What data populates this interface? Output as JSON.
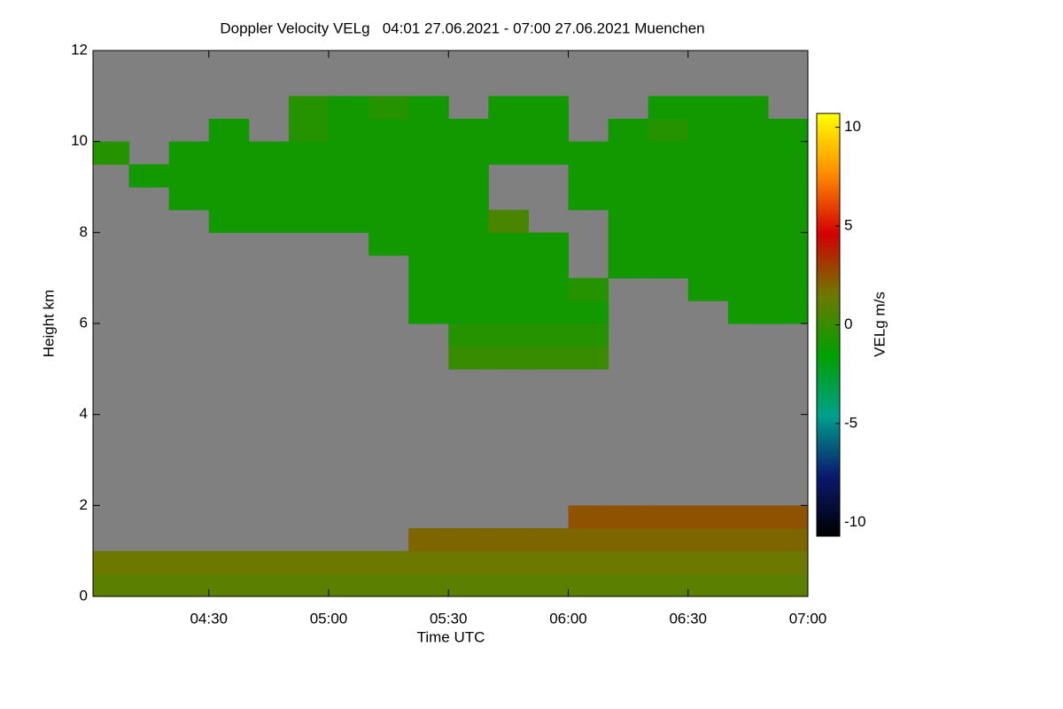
{
  "chart_data": {
    "type": "heatmap",
    "title": "Doppler Velocity VELg   04:01 27.06.2021 - 07:00 27.06.2021 Muenchen",
    "xlabel": "Time UTC",
    "ylabel": "Height km",
    "colorbar_label": "VELg m/s",
    "xlim": [
      "04:01",
      "07:00"
    ],
    "xticks": [
      "04:30",
      "05:00",
      "05:30",
      "06:00",
      "06:30",
      "07:00"
    ],
    "ylim": [
      0,
      12
    ],
    "yticks": [
      0,
      2,
      4,
      6,
      8,
      10,
      12
    ],
    "zlim": [
      -10.7,
      10.7
    ],
    "zticks": [
      -10,
      -5,
      0,
      5,
      10
    ],
    "colormap": [
      "#000000",
      "#0a1a6e",
      "#00a08c",
      "#00a000",
      "#6e7800",
      "#d20000",
      "#ff8c00",
      "#ffff00"
    ],
    "missing_color": "#808080",
    "x_bins": [
      "04:01",
      "04:10",
      "04:20",
      "04:30",
      "04:40",
      "04:50",
      "05:00",
      "05:10",
      "05:20",
      "05:30",
      "05:40",
      "05:50",
      "06:00",
      "06:10",
      "06:20",
      "06:30",
      "06:40",
      "06:50",
      "07:00"
    ],
    "y_bins": [
      0,
      0.5,
      1,
      1.5,
      2,
      2.5,
      3,
      3.5,
      4,
      4.5,
      5,
      5.5,
      6,
      6.5,
      7,
      7.5,
      8,
      8.5,
      9,
      9.5,
      10,
      10.5,
      11,
      11.5,
      12
    ],
    "z": [
      [
        1,
        1,
        1,
        1,
        1,
        1,
        1,
        1,
        1,
        1,
        1,
        1,
        1,
        1,
        1,
        1,
        1,
        1
      ],
      [
        1.5,
        1.5,
        1.5,
        1.5,
        1.5,
        1.5,
        1.5,
        1.5,
        1.5,
        1.5,
        1.5,
        1.5,
        1.5,
        1.5,
        1.5,
        1.5,
        1.5,
        1.5
      ],
      [
        null,
        null,
        null,
        null,
        null,
        null,
        null,
        null,
        2,
        2,
        2,
        2,
        2,
        2,
        2,
        2,
        2,
        2
      ],
      [
        null,
        null,
        null,
        null,
        null,
        null,
        null,
        null,
        null,
        null,
        null,
        null,
        2.5,
        2.5,
        2.5,
        2.5,
        2.5,
        2.5
      ],
      [
        null,
        null,
        null,
        null,
        null,
        null,
        null,
        null,
        null,
        null,
        null,
        null,
        null,
        null,
        null,
        null,
        null,
        null
      ],
      [
        null,
        null,
        null,
        null,
        null,
        null,
        null,
        null,
        null,
        null,
        null,
        null,
        null,
        null,
        null,
        null,
        null,
        null
      ],
      [
        null,
        null,
        null,
        null,
        null,
        null,
        null,
        null,
        null,
        null,
        null,
        null,
        null,
        null,
        null,
        null,
        null,
        null
      ],
      [
        null,
        null,
        null,
        null,
        null,
        null,
        null,
        null,
        null,
        null,
        null,
        null,
        null,
        null,
        null,
        null,
        null,
        null
      ],
      [
        null,
        null,
        null,
        null,
        null,
        null,
        null,
        null,
        null,
        null,
        null,
        null,
        null,
        null,
        null,
        null,
        null,
        null
      ],
      [
        null,
        null,
        null,
        null,
        null,
        null,
        null,
        null,
        null,
        null,
        null,
        null,
        null,
        null,
        null,
        null,
        null,
        null
      ],
      [
        null,
        null,
        null,
        null,
        null,
        null,
        null,
        null,
        null,
        0,
        0,
        0,
        0,
        null,
        null,
        null,
        null,
        null
      ],
      [
        null,
        null,
        null,
        null,
        null,
        null,
        null,
        null,
        null,
        -0.5,
        -0.5,
        -0.5,
        -0.5,
        null,
        null,
        null,
        null,
        null
      ],
      [
        null,
        null,
        null,
        null,
        null,
        null,
        null,
        null,
        -1,
        -1,
        -1,
        -1,
        -1,
        null,
        null,
        null,
        -1,
        -1
      ],
      [
        null,
        null,
        null,
        null,
        null,
        null,
        null,
        null,
        -1,
        -1,
        -1,
        -1,
        -0.5,
        null,
        null,
        -1,
        -1,
        -1
      ],
      [
        null,
        null,
        null,
        null,
        null,
        null,
        null,
        null,
        -1,
        -1,
        -1,
        -1,
        null,
        -1,
        -1,
        -1,
        -1,
        -1
      ],
      [
        null,
        null,
        null,
        null,
        null,
        null,
        null,
        -1,
        -1,
        -1,
        -1,
        -1,
        null,
        -1,
        -1,
        -1,
        -1,
        -1
      ],
      [
        null,
        null,
        null,
        -1,
        -1,
        -1,
        -1,
        -1,
        -1,
        -1,
        0.5,
        null,
        null,
        -1,
        -1,
        -1,
        -1,
        -1
      ],
      [
        null,
        null,
        -1,
        -1,
        -1,
        -1,
        -1,
        -1,
        -1,
        -1,
        null,
        null,
        -1,
        -1,
        -1,
        -1,
        -1,
        -1
      ],
      [
        null,
        -1,
        -1,
        -1,
        -1,
        -1,
        -1,
        -1,
        -1,
        -1,
        null,
        null,
        -1,
        -1,
        -1,
        -1,
        -1,
        -1
      ],
      [
        -0.5,
        null,
        -1,
        -1,
        -1,
        -1,
        -1,
        -1,
        -1,
        -1,
        -1,
        -1,
        -1,
        -1,
        -1,
        -1,
        -1,
        -1
      ],
      [
        null,
        null,
        null,
        -1,
        null,
        -0.5,
        -1,
        -1,
        -1,
        -1,
        -1,
        -1,
        null,
        -1,
        -0.5,
        -1,
        -1,
        -1
      ],
      [
        null,
        null,
        null,
        null,
        null,
        -0.5,
        -1,
        -0.5,
        -1,
        null,
        -1,
        -1,
        null,
        null,
        -1,
        -1,
        -1,
        null
      ],
      [
        null,
        null,
        null,
        null,
        null,
        null,
        null,
        null,
        null,
        null,
        null,
        null,
        null,
        null,
        null,
        null,
        null,
        null
      ],
      [
        null,
        null,
        null,
        null,
        null,
        null,
        null,
        null,
        null,
        null,
        null,
        null,
        null,
        null,
        null,
        null,
        null,
        null
      ]
    ]
  }
}
